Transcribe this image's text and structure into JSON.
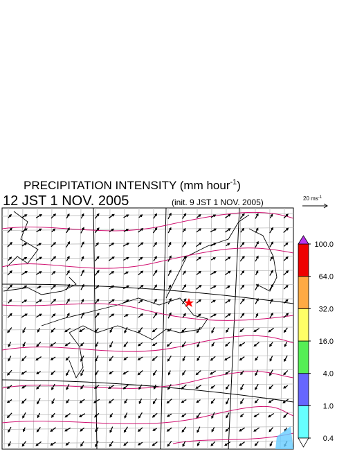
{
  "header": {
    "title": "PRECIPITATION INTENSITY (mm hour",
    "title_superscript": "-1",
    "title_close": ")",
    "valid_time": "12 JST 1 NOV. 2005",
    "init_time": "(init. 9 JST 1 NOV. 2005)"
  },
  "wind_scale": {
    "label": "20 ms",
    "superscript": "-1"
  },
  "colorbar": {
    "levels": [
      {
        "value": 0.4,
        "label": "0.4"
      },
      {
        "value": 1,
        "label": "1.0"
      },
      {
        "value": 4,
        "label": "4.0"
      },
      {
        "value": 16,
        "label": "16.0"
      },
      {
        "value": 32,
        "label": "32.0"
      },
      {
        "value": 64,
        "label": "64.0"
      },
      {
        "value": 100,
        "label": "100.0"
      }
    ],
    "colors": [
      "#66ffff",
      "#6666ff",
      "#55ee55",
      "#ffff66",
      "#ffaa44",
      "#ee0000"
    ],
    "under_color": "#ffffff",
    "over_color": "#bb33ee"
  }
}
